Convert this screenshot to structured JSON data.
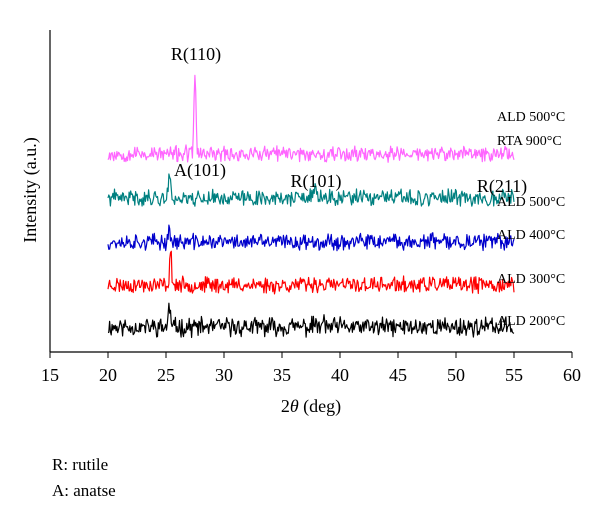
{
  "chart_data": {
    "type": "line",
    "xlabel_prefix": "2",
    "xlabel_symbol": "θ",
    "xlabel_suffix": " (deg)",
    "ylabel": "Intensity (a.u.)",
    "xlim": [
      15,
      60
    ],
    "x_ticks": [
      "15",
      "20",
      "25",
      "30",
      "35",
      "40",
      "45",
      "50",
      "55",
      "60"
    ],
    "x_range": [
      20,
      55
    ],
    "grid": false,
    "series": [
      {
        "name": "ALD 200°C",
        "color": "#000000",
        "peaks": [
          [
            25.3,
            1.0
          ],
          [
            37.8,
            0.22
          ],
          [
            38.6,
            0.25
          ],
          [
            48.0,
            0.15
          ]
        ],
        "noise": 0.35,
        "seed": 11
      },
      {
        "name": "ALD 300°C",
        "color": "#ff0000",
        "peaks": [
          [
            25.4,
            1.55
          ],
          [
            37.8,
            0.2
          ],
          [
            48.0,
            0.15
          ]
        ],
        "noise": 0.3,
        "seed": 23
      },
      {
        "name": "ALD 400°C",
        "color": "#0000cc",
        "peaks": [
          [
            25.3,
            0.65
          ],
          [
            37.9,
            0.2
          ],
          [
            48.0,
            0.12
          ]
        ],
        "noise": 0.3,
        "seed": 37
      },
      {
        "name": "ALD 500°C",
        "color": "#008080",
        "peaks": [
          [
            25.3,
            1.15
          ],
          [
            37.9,
            0.6
          ],
          [
            54.1,
            0.35
          ],
          [
            48.0,
            0.12
          ]
        ],
        "noise": 0.3,
        "seed": 41
      },
      {
        "name": "ALD 500°C RTA 900°C",
        "legend_line1": "ALD 500°C",
        "legend_line2": "RTA 900°C",
        "color": "#ff66ff",
        "peaks": [
          [
            27.5,
            4.1
          ],
          [
            36.1,
            0.25
          ],
          [
            39.2,
            0.3
          ],
          [
            41.3,
            0.2
          ],
          [
            54.3,
            0.2
          ]
        ],
        "noise": 0.3,
        "seed": 53
      }
    ],
    "annotations": [
      "R(110)",
      "A(101)",
      "R(101)",
      "R(211)"
    ]
  },
  "notes": {
    "rutile": "R: rutile",
    "anatase": "A: anatse"
  }
}
